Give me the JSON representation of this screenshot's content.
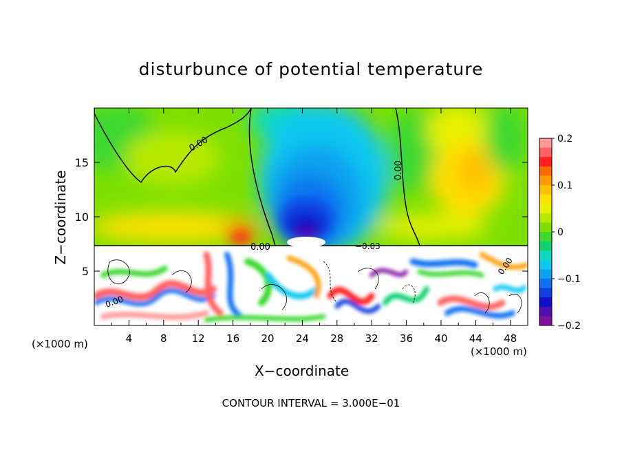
{
  "chart_data": {
    "type": "heatmap",
    "title": "disturbunce of potential temperature",
    "xlabel": "X−coordinate",
    "ylabel": "Z−coordinate",
    "x_unit": "(×1000 m)",
    "y_unit": "(×1000 m)",
    "xlim": [
      0,
      50
    ],
    "ylim": [
      0,
      20
    ],
    "x_ticks": [
      "4",
      "8",
      "12",
      "16",
      "20",
      "24",
      "28",
      "32",
      "36",
      "40",
      "44",
      "48"
    ],
    "y_ticks": [
      "5",
      "10",
      "15"
    ],
    "colorbar": {
      "range": [
        -0.2,
        0.2
      ],
      "tick_labels": [
        "0.2",
        "0.1",
        "0",
        "−0.1",
        "−0.2"
      ],
      "colors": [
        "#ff9999",
        "#ff6060",
        "#ff2020",
        "#ff6a00",
        "#ff9a00",
        "#ffc000",
        "#ffe000",
        "#e8f000",
        "#b8e800",
        "#7ee000",
        "#3ed830",
        "#10d070",
        "#10d8c0",
        "#10c8f0",
        "#10a0f0",
        "#1070f0",
        "#1040e0",
        "#1010c8",
        "#5010b0",
        "#8010a0"
      ]
    },
    "contour_labels": [
      "0.00",
      "0.00",
      "0.00",
      "−0.03",
      "0.00",
      "0.00"
    ],
    "contour_interval_text": "CONTOUR INTERVAL = 3.000E−01"
  }
}
